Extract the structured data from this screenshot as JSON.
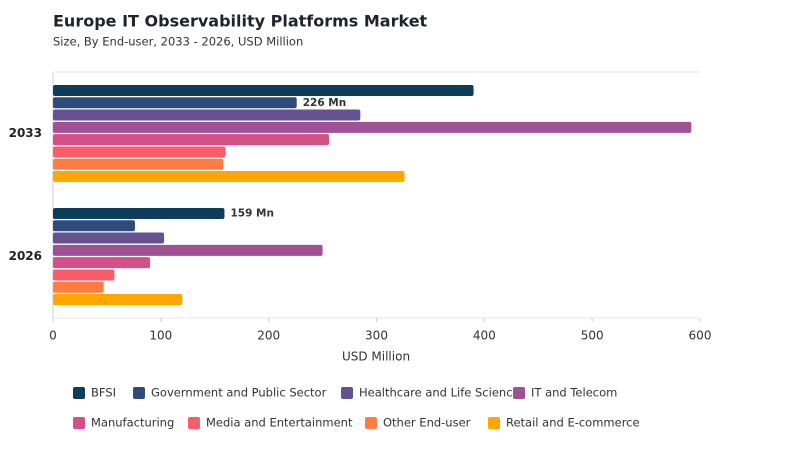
{
  "chart_data": {
    "type": "bar",
    "orientation": "horizontal",
    "title": "Europe IT Observability Platforms Market",
    "subtitle": "Size, By End-user, 2033 - 2026, USD Million",
    "x_label": "USD Million",
    "categories": [
      "2033",
      "2026"
    ],
    "xlim": [
      0,
      600
    ],
    "xticks": [
      0,
      100,
      200,
      300,
      400,
      500,
      600
    ],
    "grid": false,
    "series": [
      {
        "name": "BFSI",
        "color": "#0e3d5c",
        "values": [
          390,
          159
        ],
        "value_labels": [
          null,
          "159 Mn"
        ]
      },
      {
        "name": "Government and Public Sector",
        "color": "#2f4b7c",
        "values": [
          226,
          76
        ],
        "value_labels": [
          "226 Mn",
          null
        ]
      },
      {
        "name": "Healthcare and Life Sciences",
        "color": "#665191",
        "values": [
          285,
          103
        ]
      },
      {
        "name": "IT and Telecom",
        "color": "#a05195",
        "values": [
          592,
          250
        ]
      },
      {
        "name": "Manufacturing",
        "color": "#d45087",
        "values": [
          256,
          90
        ]
      },
      {
        "name": "Media and Entertainment",
        "color": "#f95d6a",
        "values": [
          160,
          57
        ]
      },
      {
        "name": "Other End-user",
        "color": "#ff7c43",
        "values": [
          158,
          47
        ]
      },
      {
        "name": "Retail and E-commerce",
        "color": "#ffa600",
        "values": [
          326,
          120
        ]
      }
    ]
  }
}
